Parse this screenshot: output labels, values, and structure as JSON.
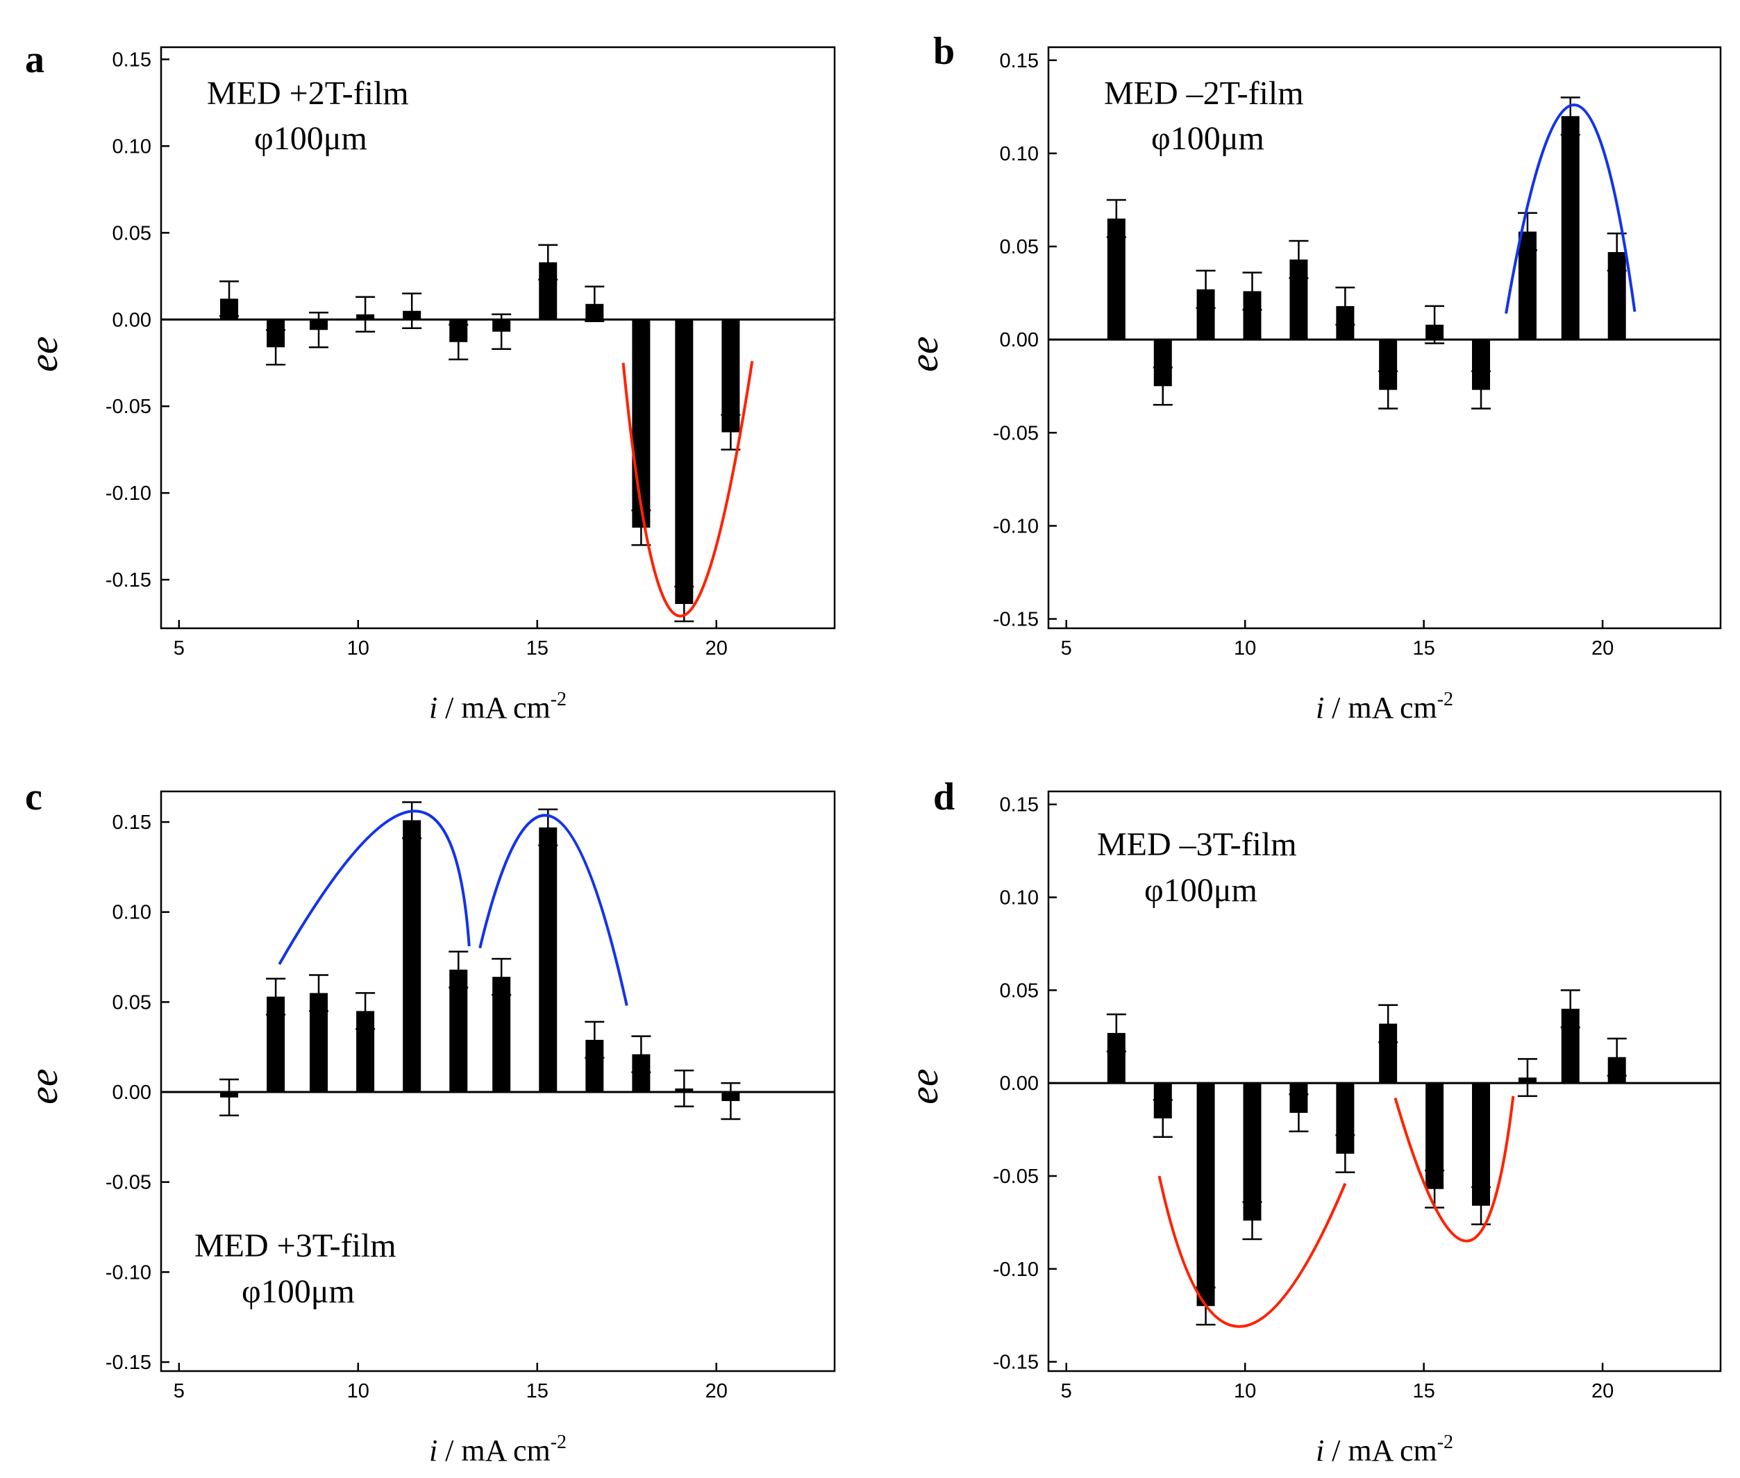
{
  "chart_data": [
    {
      "type": "bar",
      "panel": "a",
      "xlabel": "i / mA cm-2",
      "xlabel_var": "i",
      "xlabel_units": "/ mA cm",
      "xlabel_exp": "-2",
      "ylabel": "ee",
      "xlim": [
        4.5,
        23.3
      ],
      "ylim": [
        -0.178,
        0.157
      ],
      "xticks": [
        5,
        10,
        15,
        20
      ],
      "yticks": [
        0.15,
        0.1,
        0.05,
        0.0,
        -0.05,
        -0.1,
        -0.15
      ],
      "ytick_labels": [
        "0.15",
        "0.10",
        "0.05",
        "0.00",
        "-0.05",
        "-0.10",
        "-0.15"
      ],
      "annotation_lines": [
        "MED +2T-film",
        "φ100μm"
      ],
      "annotation_pos": "top-left",
      "x": [
        6.4,
        7.7,
        8.9,
        10.2,
        11.5,
        12.8,
        14.0,
        15.3,
        16.6,
        17.9,
        19.1,
        20.4
      ],
      "values": [
        0.012,
        -0.016,
        -0.006,
        0.003,
        0.005,
        -0.013,
        -0.007,
        0.033,
        0.009,
        -0.12,
        -0.164,
        -0.065
      ],
      "errors": [
        0.01,
        0.01,
        0.01,
        0.01,
        0.01,
        0.01,
        0.01,
        0.01,
        0.01,
        0.01,
        0.01,
        0.01
      ],
      "fit_curves": [
        {
          "color": "#ff2200",
          "x": [
            17.4,
            19.0,
            21.0
          ],
          "y": [
            -0.025,
            -0.171,
            -0.024
          ]
        }
      ]
    },
    {
      "type": "bar",
      "panel": "b",
      "xlabel": "i / mA cm-2",
      "xlabel_var": "i",
      "xlabel_units": "/ mA cm",
      "xlabel_exp": "-2",
      "ylabel": "ee",
      "xlim": [
        4.5,
        23.3
      ],
      "ylim": [
        -0.155,
        0.157
      ],
      "xticks": [
        5,
        10,
        15,
        20
      ],
      "yticks": [
        0.15,
        0.1,
        0.05,
        0.0,
        -0.05,
        -0.1,
        -0.15
      ],
      "ytick_labels": [
        "0.15",
        "0.10",
        "0.05",
        "0.00",
        "-0.05",
        "-0.10",
        "-0.15"
      ],
      "annotation_lines": [
        "MED –2T-film",
        "φ100μm"
      ],
      "annotation_pos": "top-left",
      "x": [
        6.4,
        7.7,
        8.9,
        10.2,
        11.5,
        12.8,
        14.0,
        15.3,
        16.6,
        17.9,
        19.1,
        20.4
      ],
      "values": [
        0.065,
        -0.025,
        0.027,
        0.026,
        0.043,
        0.018,
        -0.027,
        0.008,
        -0.027,
        0.058,
        0.12,
        0.047
      ],
      "errors": [
        0.01,
        0.01,
        0.01,
        0.01,
        0.01,
        0.01,
        0.01,
        0.01,
        0.01,
        0.01,
        0.01,
        0.01
      ],
      "fit_curves": [
        {
          "color": "#1133ee",
          "x": [
            17.3,
            19.2,
            20.9
          ],
          "y": [
            0.014,
            0.126,
            0.015
          ]
        }
      ]
    },
    {
      "type": "bar",
      "panel": "c",
      "xlabel": "i / mA cm-2",
      "xlabel_var": "i",
      "xlabel_units": "/ mA cm",
      "xlabel_exp": "-2",
      "ylabel": "ee",
      "xlim": [
        4.5,
        23.3
      ],
      "ylim": [
        -0.155,
        0.167
      ],
      "xticks": [
        5,
        10,
        15,
        20
      ],
      "yticks": [
        0.15,
        0.1,
        0.05,
        0.0,
        -0.05,
        -0.1,
        -0.15
      ],
      "ytick_labels": [
        "0.15",
        "0.10",
        "0.05",
        "0.00",
        "-0.05",
        "-0.10",
        "-0.15"
      ],
      "annotation_lines": [
        "MED +3T-film",
        "φ100μm"
      ],
      "annotation_pos": "bottom-left",
      "x": [
        6.4,
        7.7,
        8.9,
        10.2,
        11.5,
        12.8,
        14.0,
        15.3,
        16.6,
        17.9,
        19.1,
        20.4
      ],
      "values": [
        -0.003,
        0.053,
        0.055,
        0.045,
        0.151,
        0.068,
        0.064,
        0.147,
        0.029,
        0.021,
        0.002,
        -0.005
      ],
      "errors": [
        0.01,
        0.01,
        0.01,
        0.01,
        0.01,
        0.01,
        0.01,
        0.01,
        0.01,
        0.01,
        0.01,
        0.01
      ],
      "fit_curves": [
        {
          "color": "#1133ee",
          "x": [
            7.8,
            11.5,
            13.1
          ],
          "y": [
            0.071,
            0.156,
            0.081
          ]
        },
        {
          "color": "#1133ee",
          "x": [
            13.4,
            15.4,
            17.5
          ],
          "y": [
            0.08,
            0.153,
            0.048
          ]
        }
      ]
    },
    {
      "type": "bar",
      "panel": "d",
      "xlabel": "i / mA cm-2",
      "xlabel_var": "i",
      "xlabel_units": "/ mA cm",
      "xlabel_exp": "-2",
      "ylabel": "ee",
      "xlim": [
        4.5,
        23.3
      ],
      "ylim": [
        -0.155,
        0.157
      ],
      "xticks": [
        5,
        10,
        15,
        20
      ],
      "yticks": [
        0.15,
        0.1,
        0.05,
        0.0,
        -0.05,
        -0.1,
        -0.15
      ],
      "ytick_labels": [
        "0.15",
        "0.10",
        "0.05",
        "0.00",
        "-0.05",
        "-0.10",
        "-0.15"
      ],
      "annotation_lines": [
        "MED –3T-film",
        "φ100μm"
      ],
      "annotation_pos": "top-left",
      "x": [
        6.4,
        7.7,
        8.9,
        10.2,
        11.5,
        12.8,
        14.0,
        15.3,
        16.6,
        17.9,
        19.1,
        20.4
      ],
      "values": [
        0.027,
        -0.019,
        -0.12,
        -0.074,
        -0.016,
        -0.038,
        0.032,
        -0.057,
        -0.066,
        0.003,
        0.04,
        0.014
      ],
      "errors": [
        0.01,
        0.01,
        0.01,
        0.01,
        0.01,
        0.01,
        0.01,
        0.01,
        0.01,
        0.01,
        0.01,
        0.01
      ],
      "fit_curves": [
        {
          "color": "#ff2200",
          "x": [
            7.6,
            9.8,
            12.8
          ],
          "y": [
            -0.05,
            -0.131,
            -0.054
          ]
        },
        {
          "color": "#ff2200",
          "x": [
            14.2,
            16.2,
            17.5
          ],
          "y": [
            -0.008,
            -0.085,
            -0.007
          ]
        }
      ]
    }
  ]
}
